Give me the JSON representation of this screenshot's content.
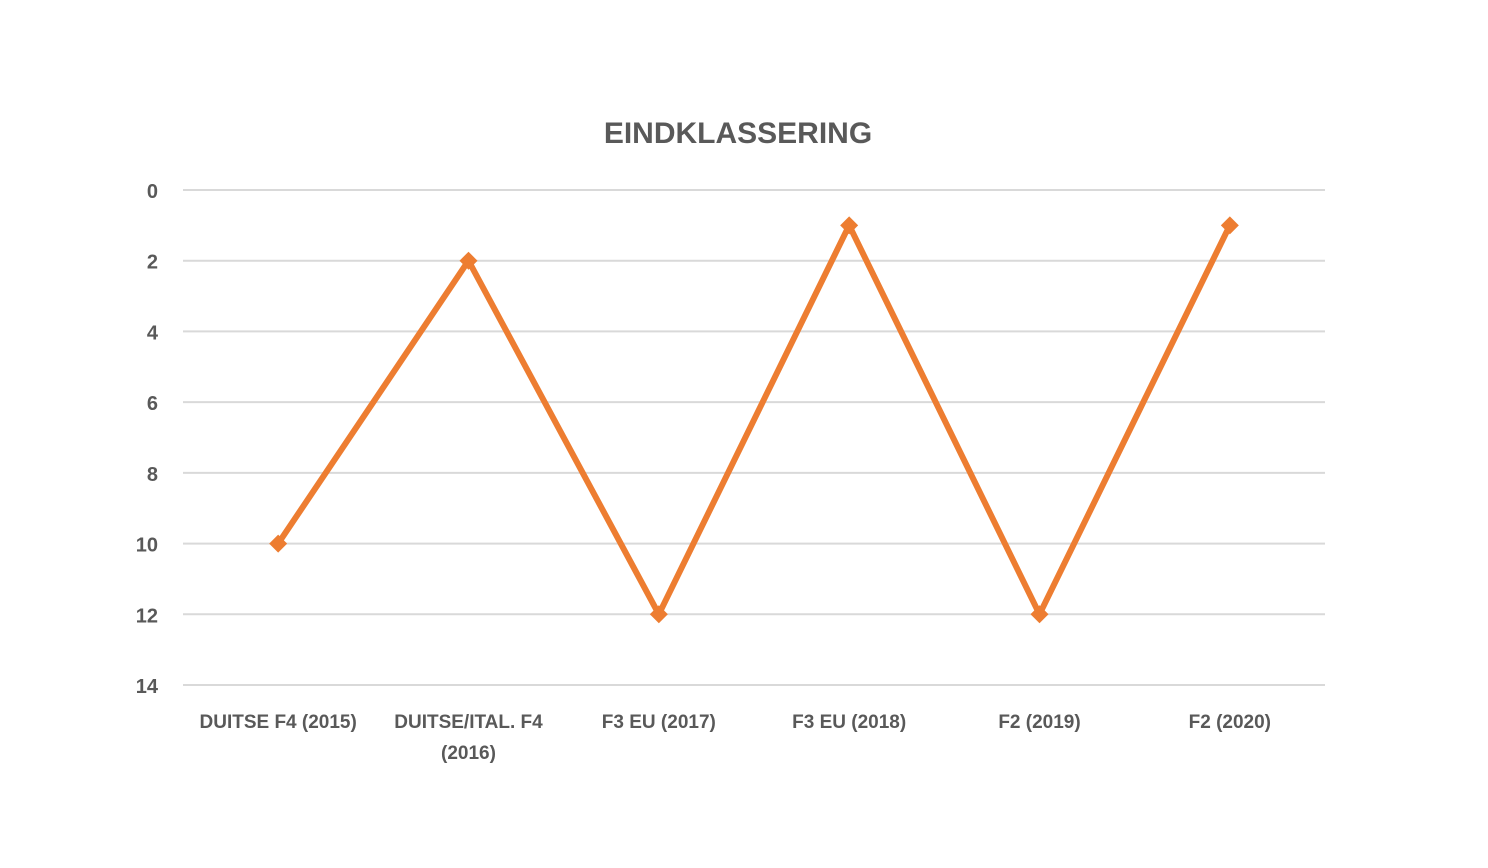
{
  "chart_data": {
    "type": "line",
    "title": "EINDKLASSERING",
    "xlabel": "",
    "ylabel": "",
    "categories": [
      [
        "DUITSE F4 (2015)"
      ],
      [
        "DUITSE/ITAL. F4",
        "(2016)"
      ],
      [
        "F3 EU (2017)"
      ],
      [
        "F3 EU (2018)"
      ],
      [
        "F2 (2019)"
      ],
      [
        "F2 (2020)"
      ]
    ],
    "series": [
      {
        "values": [
          10,
          2,
          12,
          1,
          12,
          1
        ],
        "color": "#ed7d31",
        "marker": "diamond"
      }
    ],
    "ylim": [
      0,
      14
    ],
    "y_reversed": true,
    "y_ticks": [
      0,
      2,
      4,
      6,
      8,
      10,
      12,
      14
    ],
    "grid": true,
    "legend": "none"
  }
}
